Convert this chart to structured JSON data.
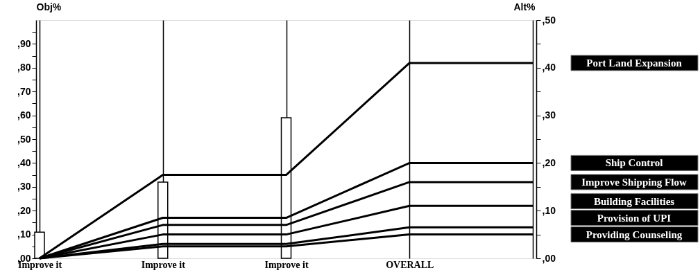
{
  "chart_data": {
    "type": "line",
    "categories": [
      "Improve it",
      "Improve it",
      "Improve it",
      "OVERALL",
      null
    ],
    "ylabel": "Obj%",
    "y2label": "Alt%",
    "ylim": [
      0,
      100
    ],
    "yticks": [
      {
        "value": 0,
        "label": ",00"
      },
      {
        "value": 5,
        "label": null
      },
      {
        "value": 10,
        "label": ",10"
      },
      {
        "value": 15,
        "label": null
      },
      {
        "value": 20,
        "label": ",20"
      },
      {
        "value": 25,
        "label": null
      },
      {
        "value": 30,
        "label": ",30"
      },
      {
        "value": 35,
        "label": null
      },
      {
        "value": 40,
        "label": ",40"
      },
      {
        "value": 45,
        "label": null
      },
      {
        "value": 50,
        "label": ",50"
      },
      {
        "value": 55,
        "label": null
      },
      {
        "value": 60,
        "label": ",60"
      },
      {
        "value": 65,
        "label": null
      },
      {
        "value": 70,
        "label": ",70"
      },
      {
        "value": 75,
        "label": null
      },
      {
        "value": 80,
        "label": ",80"
      },
      {
        "value": 85,
        "label": null
      },
      {
        "value": 90,
        "label": ",90"
      },
      {
        "value": 95,
        "label": null
      }
    ],
    "y2lim": [
      0,
      50
    ],
    "y2ticks": [
      {
        "value": 0,
        "label": ",00"
      },
      {
        "value": 5,
        "label": null
      },
      {
        "value": 10,
        "label": ",10"
      },
      {
        "value": 15,
        "label": null
      },
      {
        "value": 20,
        "label": ",20"
      },
      {
        "value": 25,
        "label": null
      },
      {
        "value": 30,
        "label": ",30"
      },
      {
        "value": 35,
        "label": null
      },
      {
        "value": 40,
        "label": ",40"
      },
      {
        "value": 45,
        "label": null
      },
      {
        "value": 50,
        "label": ",50"
      }
    ],
    "grid": "x",
    "series": [
      {
        "type": "bar",
        "color": "#ffffff",
        "values": [
          11,
          32,
          59,
          null,
          null
        ]
      },
      {
        "name": "Port Land Expansion",
        "color": "#000000",
        "axis": "y2",
        "values": [
          0,
          17.5,
          17.5,
          41,
          41
        ]
      },
      {
        "name": "Ship Control",
        "color": "#000000",
        "axis": "y2",
        "values": [
          0,
          8.5,
          8.5,
          20,
          20
        ]
      },
      {
        "name": "Improve Shipping Flow",
        "color": "#000000",
        "axis": "y2",
        "values": [
          0,
          7,
          7,
          16,
          16
        ]
      },
      {
        "name": "Building Facilities",
        "color": "#000000",
        "axis": "y2",
        "values": [
          0,
          5,
          5,
          11,
          11
        ]
      },
      {
        "name": "Provision of UPI",
        "color": "#000000",
        "axis": "y2",
        "values": [
          0,
          3,
          3,
          6.5,
          6.5
        ]
      },
      {
        "name": "Providing Counseling",
        "color": "#000000",
        "axis": "y2",
        "values": [
          0,
          2.5,
          2.5,
          5,
          5
        ]
      }
    ]
  }
}
